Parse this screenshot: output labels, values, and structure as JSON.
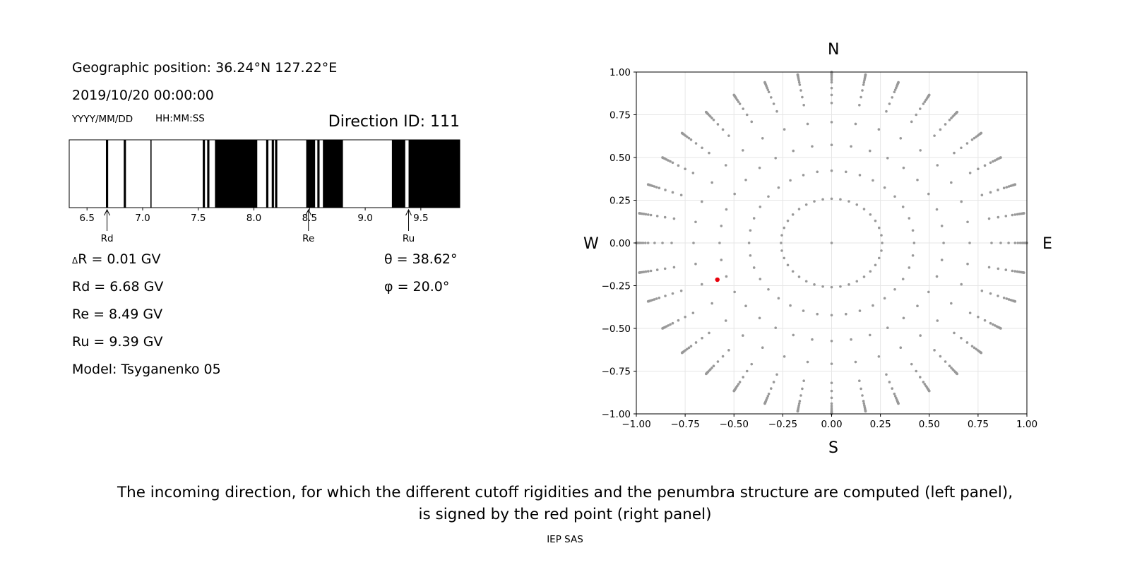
{
  "info": {
    "geo": "Geographic position: 36.24°N 127.22°E",
    "datetime": "2019/10/20 00:00:00",
    "date_fmt": "YYYY/MM/DD",
    "time_fmt": "HH:MM:SS",
    "direction": "Direction ID: 111"
  },
  "values": {
    "dr_sym": "Δ",
    "dr_rest": "R = 0.01 GV",
    "rd": "Rd = 6.68 GV",
    "re": "Re = 8.49 GV",
    "ru": "Ru = 9.39 GV",
    "model": "Model: Tsyganenko 05",
    "theta_sym": "θ",
    "theta_rest": " = 38.62°",
    "phi_sym": "φ",
    "phi_rest": " = 20.0°"
  },
  "compass": {
    "n": "N",
    "s": "S",
    "w": "W",
    "e": "E"
  },
  "caption": {
    "line1": "The incoming direction, for which the different cutoff rigidities and the penumbra structure are computed (left panel),",
    "line2": "is signed by the red point (right panel)",
    "credit": "IEP SAS"
  },
  "chart_data": [
    {
      "type": "penumbra-bar",
      "xlim": [
        6.34,
        9.85
      ],
      "ticks": [
        6.5,
        7.0,
        7.5,
        8.0,
        8.5,
        9.0,
        9.5
      ],
      "tick_labels": [
        "6.5",
        "7.0",
        "7.5",
        "8.0",
        "8.5",
        "9.0",
        "9.5"
      ],
      "forbidden_bands": [
        [
          6.67,
          6.69
        ],
        [
          6.83,
          6.85
        ],
        [
          7.07,
          7.08
        ],
        [
          7.54,
          7.56
        ],
        [
          7.58,
          7.6
        ],
        [
          7.65,
          8.03
        ],
        [
          8.11,
          8.13
        ],
        [
          8.16,
          8.18
        ],
        [
          8.19,
          8.21
        ],
        [
          8.47,
          8.55
        ],
        [
          8.57,
          8.59
        ],
        [
          8.62,
          8.8
        ],
        [
          9.24,
          9.36
        ],
        [
          9.39,
          9.85
        ]
      ],
      "markers": [
        {
          "label": "Rd",
          "x": 6.68
        },
        {
          "label": "Re",
          "x": 8.49
        },
        {
          "label": "Ru",
          "x": 9.39
        }
      ]
    },
    {
      "type": "scatter",
      "xlim": [
        -1.0,
        1.0
      ],
      "ylim": [
        -1.0,
        1.0
      ],
      "grid": true,
      "xticks": [
        "−1.00",
        "−0.75",
        "−0.50",
        "−0.25",
        "0.00",
        "0.25",
        "0.50",
        "0.75",
        "1.00"
      ],
      "yticks": [
        "−1.00",
        "−0.75",
        "−0.50",
        "−0.25",
        "0.00",
        "0.25",
        "0.50",
        "0.75",
        "1.00"
      ],
      "grid_points": {
        "color": "#999999",
        "azimuth_step_deg": 10,
        "zenith_deg": [
          0,
          15,
          25,
          35,
          45,
          55,
          60,
          65,
          70,
          72.5,
          75,
          77.5,
          80,
          82,
          84,
          86,
          88,
          90
        ],
        "center": {
          "x": 0.0,
          "y": 0.0
        }
      },
      "highlight": {
        "x": -0.585,
        "y": -0.215,
        "color": "#e8000b"
      }
    }
  ]
}
